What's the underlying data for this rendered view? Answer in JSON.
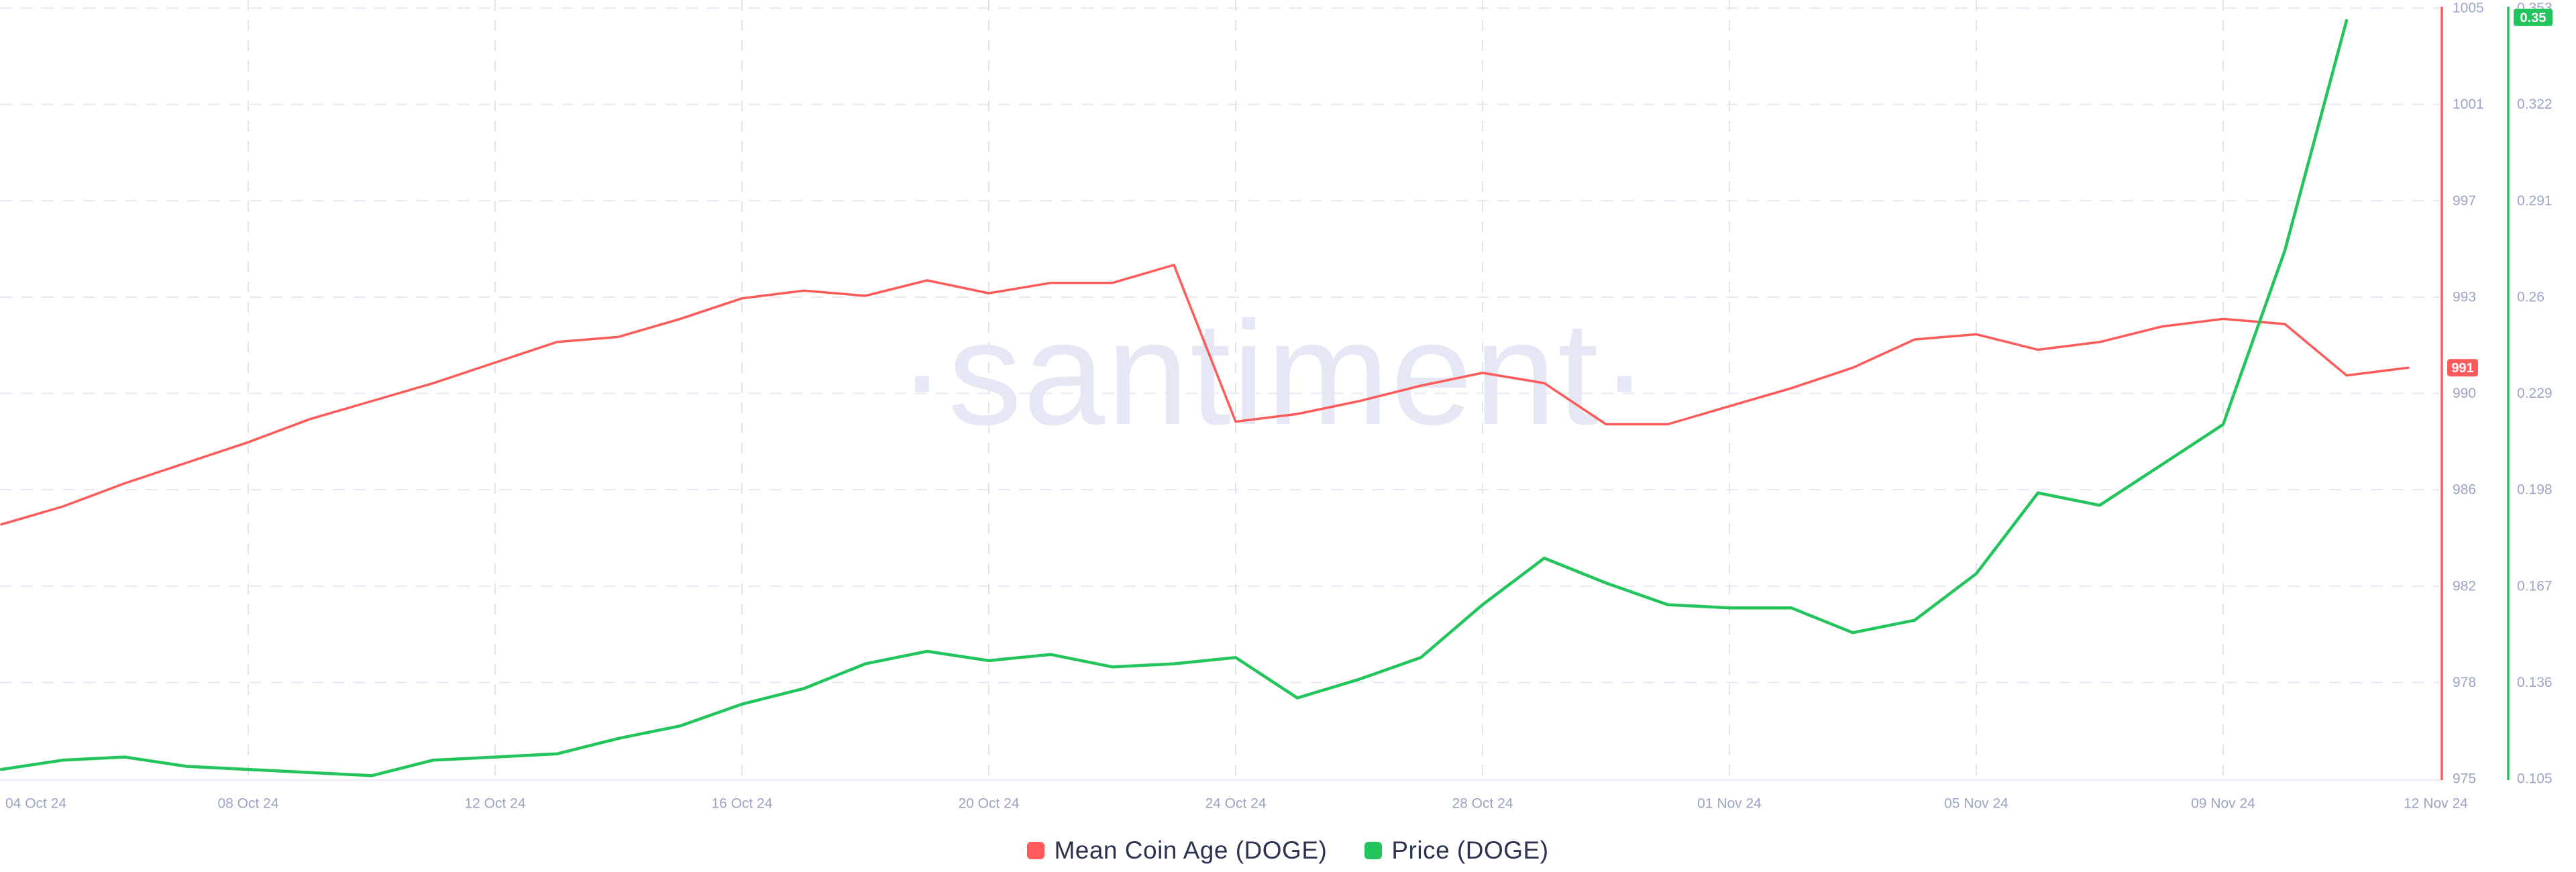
{
  "watermark": "·santiment·",
  "colors": {
    "background": "#ffffff",
    "red": "#ff5a5a",
    "green": "#22c45c",
    "grid_horizontal": "#e6e9f3",
    "grid_vertical": "#dfe4ef",
    "axis_bottom_line": "#e9ecf4",
    "tick_text": "#9aa5c4",
    "legend_text": "#2c3350",
    "badge_text": "#ffffff",
    "watermark_color": "#e5e8f4"
  },
  "legend": [
    {
      "label": "Mean Coin Age (DOGE)",
      "color": "#ff5a5a",
      "series": "mean_coin_age"
    },
    {
      "label": "Price (DOGE)",
      "color": "#22c45c",
      "series": "price"
    }
  ],
  "chart_data": {
    "type": "line",
    "title": "",
    "grid": "dashed",
    "legend_position": "bottom",
    "x": [
      "04 Oct 24",
      "05 Oct 24",
      "06 Oct 24",
      "07 Oct 24",
      "08 Oct 24",
      "09 Oct 24",
      "10 Oct 24",
      "11 Oct 24",
      "12 Oct 24",
      "13 Oct 24",
      "14 Oct 24",
      "15 Oct 24",
      "16 Oct 24",
      "17 Oct 24",
      "18 Oct 24",
      "19 Oct 24",
      "20 Oct 24",
      "21 Oct 24",
      "22 Oct 24",
      "23 Oct 24",
      "24 Oct 24",
      "25 Oct 24",
      "26 Oct 24",
      "27 Oct 24",
      "28 Oct 24",
      "29 Oct 24",
      "30 Oct 24",
      "31 Oct 24",
      "01 Nov 24",
      "02 Nov 24",
      "03 Nov 24",
      "04 Nov 24",
      "05 Nov 24",
      "06 Nov 24",
      "07 Nov 24",
      "08 Nov 24",
      "09 Nov 24",
      "10 Nov 24",
      "11 Nov 24",
      "12 Nov 24"
    ],
    "x_ticks": [
      {
        "label": "04 Oct 24",
        "day": 0
      },
      {
        "label": "08 Oct 24",
        "day": 4
      },
      {
        "label": "12 Oct 24",
        "day": 8
      },
      {
        "label": "16 Oct 24",
        "day": 12
      },
      {
        "label": "20 Oct 24",
        "day": 16
      },
      {
        "label": "24 Oct 24",
        "day": 20
      },
      {
        "label": "28 Oct 24",
        "day": 24
      },
      {
        "label": "01 Nov 24",
        "day": 28
      },
      {
        "label": "05 Nov 24",
        "day": 32
      },
      {
        "label": "09 Nov 24",
        "day": 36
      },
      {
        "label": "12 Nov 24",
        "day": 39
      }
    ],
    "series": [
      {
        "name": "Mean Coin Age (DOGE)",
        "axis": "mean_coin_age",
        "color": "#ff5a5a",
        "values": [
          984.9,
          985.6,
          986.5,
          987.3,
          988.1,
          989.0,
          989.7,
          990.4,
          991.2,
          992.0,
          992.2,
          992.9,
          993.7,
          994.0,
          993.8,
          994.4,
          993.9,
          994.3,
          994.3,
          995.0,
          988.9,
          989.2,
          989.7,
          990.3,
          990.8,
          990.4,
          988.8,
          988.8,
          989.5,
          990.2,
          991.0,
          992.1,
          992.3,
          991.7,
          992.0,
          992.6,
          992.9,
          992.7,
          990.7,
          991.0
        ]
      },
      {
        "name": "Price (DOGE)",
        "axis": "price",
        "color": "#22c45c",
        "values": [
          0.108,
          0.111,
          0.112,
          0.109,
          0.108,
          0.107,
          0.106,
          0.111,
          0.112,
          0.113,
          0.118,
          0.122,
          0.129,
          0.134,
          0.142,
          0.146,
          0.143,
          0.145,
          0.141,
          0.142,
          0.144,
          0.131,
          0.137,
          0.144,
          0.161,
          0.176,
          0.168,
          0.161,
          0.16,
          0.16,
          0.152,
          0.156,
          0.171,
          0.197,
          0.193,
          0.206,
          0.219,
          0.275,
          0.349,
          null
        ]
      }
    ],
    "axes": {
      "mean_coin_age": {
        "position": "right-inner",
        "color": "#ff5a5a",
        "min": 975,
        "max": 1005,
        "tick_labels": [
          "975",
          "978",
          "982",
          "986",
          "990",
          "993",
          "997",
          "1001",
          "1005"
        ],
        "current_value": "991"
      },
      "price": {
        "position": "right-outer",
        "color": "#22c45c",
        "min": 0.105,
        "max": 0.353,
        "tick_labels": [
          "0.105",
          "0.136",
          "0.167",
          "0.198",
          "0.229",
          "0.26",
          "0.291",
          "0.322",
          "0.353"
        ],
        "current_value": "0.35"
      }
    }
  }
}
